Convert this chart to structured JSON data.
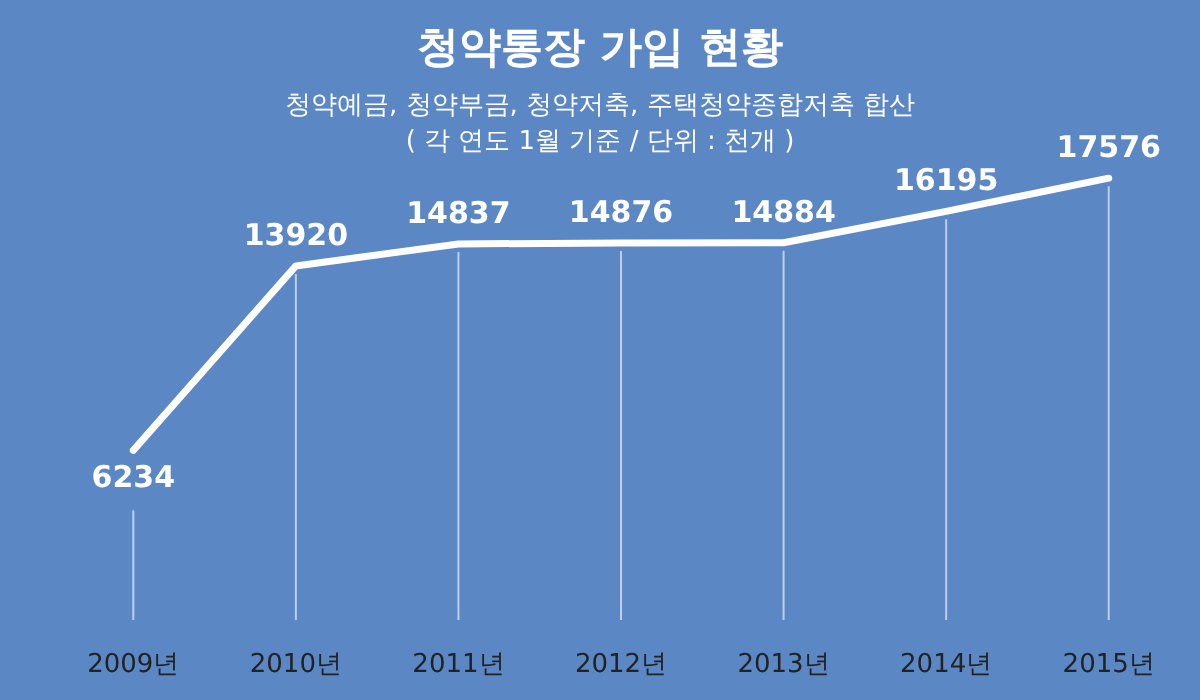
{
  "chart_data": {
    "type": "line",
    "title": "청약통장 가입 현황",
    "subtitle": "청약예금, 청약부금, 청약저축, 주택청약종합저축 합산\n( 각 연도 1월 기준 / 단위 : 천개 )",
    "categories": [
      "2009년",
      "2010년",
      "2011년",
      "2012년",
      "2013년",
      "2014년",
      "2015년"
    ],
    "series": [
      {
        "color": "#ffffff",
        "values": [
          6234,
          13920,
          14837,
          14876,
          14884,
          16195,
          17576
        ]
      }
    ],
    "data_labels": true,
    "grid": "x",
    "marker": "none",
    "line_style": "solid"
  }
}
